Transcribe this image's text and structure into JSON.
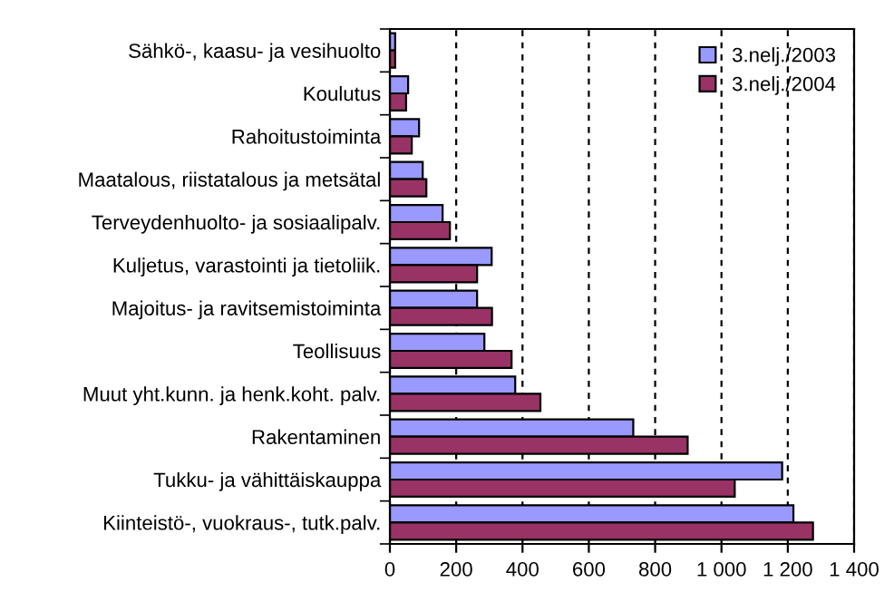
{
  "chart_data": {
    "type": "bar",
    "orientation": "horizontal",
    "categories": [
      "Sähkö-, kaasu- ja vesihuolto",
      "Koulutus",
      "Rahoitustoiminta",
      "Maatalous, riistatalous ja metsätal",
      "Terveydenhuolto- ja sosiaalipalv.",
      "Kuljetus, varastointi ja tietoliik.",
      "Majoitus- ja ravitsemistoiminta",
      "Teollisuus",
      "Muut yht.kunn. ja henk.koht. palv.",
      "Rakentaminen",
      "Tukku- ja vähittäiskauppa",
      "Kiinteistö-, vuokraus-, tutk.palv."
    ],
    "series": [
      {
        "name": "3.nelj./2003",
        "color": "#9999ff",
        "values": [
          16,
          55,
          88,
          99,
          159,
          307,
          263,
          285,
          378,
          734,
          1183,
          1217
        ]
      },
      {
        "name": "3.nelj./2004",
        "color": "#993366",
        "values": [
          16,
          49,
          66,
          110,
          181,
          263,
          308,
          367,
          454,
          898,
          1040,
          1276
        ]
      }
    ],
    "xlim": [
      0,
      1400
    ],
    "xticks": [
      0,
      200,
      400,
      600,
      800,
      {
        "value": 1000,
        "label": "1 000"
      },
      {
        "value": 1200,
        "label": "1 200"
      },
      {
        "value": 1400,
        "label": "1 400"
      }
    ],
    "grid": "x",
    "legend": "top right"
  }
}
